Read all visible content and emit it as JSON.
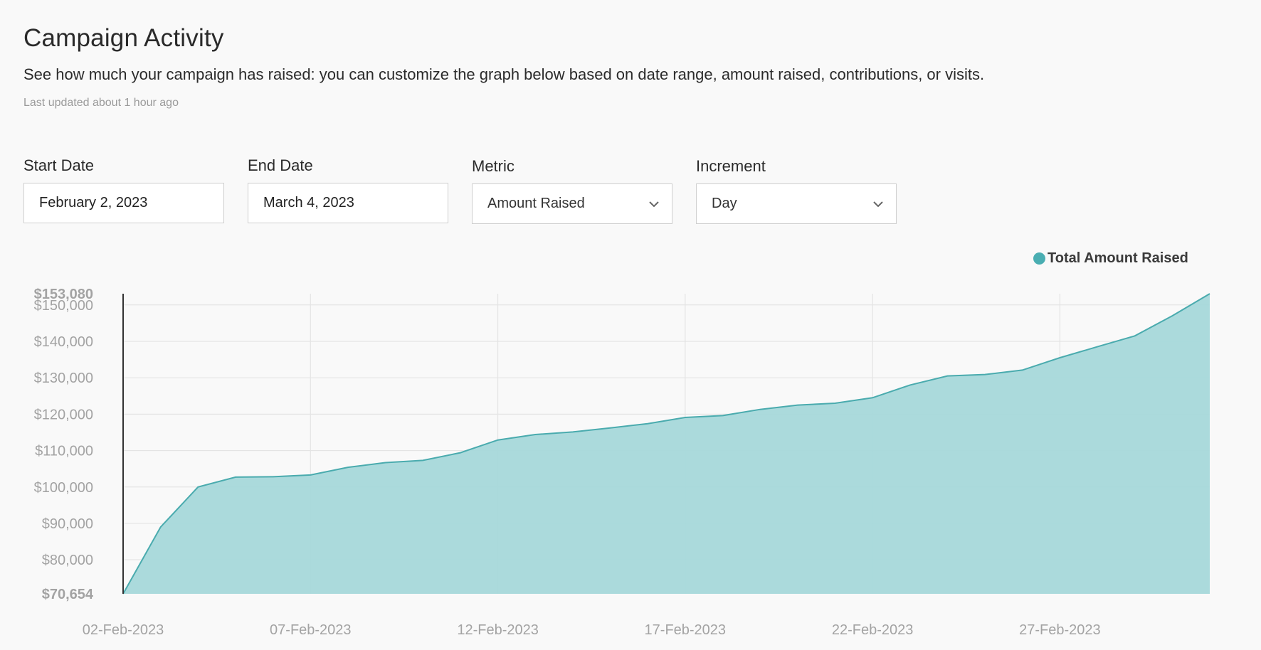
{
  "header": {
    "title": "Campaign Activity",
    "description": "See how much your campaign has raised: you can customize the graph below based on date range, amount raised, contributions, or visits.",
    "updated": "Last updated about 1 hour ago"
  },
  "filters": {
    "start_date": {
      "label": "Start Date",
      "value": "February 2, 2023"
    },
    "end_date": {
      "label": "End Date",
      "value": "March 4, 2023"
    },
    "metric": {
      "label": "Metric",
      "value": "Amount Raised"
    },
    "increment": {
      "label": "Increment",
      "value": "Day"
    }
  },
  "colors": {
    "series_fill": "#a7d8da",
    "series_line": "#4aabae",
    "legend_dot": "#4aaeb2"
  },
  "chart_data": {
    "type": "area",
    "grid": true,
    "legend_position": "top-right",
    "series": [
      {
        "name": "Total Amount Raised",
        "x": [
          "2023-02-02",
          "2023-02-03",
          "2023-02-04",
          "2023-02-05",
          "2023-02-06",
          "2023-02-07",
          "2023-02-08",
          "2023-02-09",
          "2023-02-10",
          "2023-02-11",
          "2023-02-12",
          "2023-02-13",
          "2023-02-14",
          "2023-02-15",
          "2023-02-16",
          "2023-02-17",
          "2023-02-18",
          "2023-02-19",
          "2023-02-20",
          "2023-02-21",
          "2023-02-22",
          "2023-02-23",
          "2023-02-24",
          "2023-02-25",
          "2023-02-26",
          "2023-02-27",
          "2023-02-28",
          "2023-03-01",
          "2023-03-02",
          "2023-03-03"
        ],
        "values": [
          70654,
          89000,
          100000,
          102700,
          102800,
          103300,
          105400,
          106700,
          107300,
          109400,
          112900,
          114400,
          115100,
          116200,
          117400,
          119100,
          119600,
          121300,
          122500,
          123000,
          124500,
          128000,
          130500,
          130900,
          132100,
          135500,
          138500,
          141500,
          147000,
          153080
        ]
      }
    ],
    "ylim": [
      70654,
      153080
    ],
    "y_ticks": [
      {
        "value": 153080,
        "label": "$153,080",
        "bold": true
      },
      {
        "value": 150000,
        "label": "$150,000"
      },
      {
        "value": 140000,
        "label": "$140,000"
      },
      {
        "value": 130000,
        "label": "$130,000"
      },
      {
        "value": 120000,
        "label": "$120,000"
      },
      {
        "value": 110000,
        "label": "$110,000"
      },
      {
        "value": 100000,
        "label": "$100,000"
      },
      {
        "value": 90000,
        "label": "$90,000"
      },
      {
        "value": 80000,
        "label": "$80,000"
      },
      {
        "value": 70654,
        "label": "$70,654",
        "bold": true
      }
    ],
    "x_ticks": [
      {
        "value": "2023-02-02",
        "label": "02-Feb-2023"
      },
      {
        "value": "2023-02-07",
        "label": "07-Feb-2023"
      },
      {
        "value": "2023-02-12",
        "label": "12-Feb-2023"
      },
      {
        "value": "2023-02-17",
        "label": "17-Feb-2023"
      },
      {
        "value": "2023-02-22",
        "label": "22-Feb-2023"
      },
      {
        "value": "2023-02-27",
        "label": "27-Feb-2023"
      }
    ]
  }
}
